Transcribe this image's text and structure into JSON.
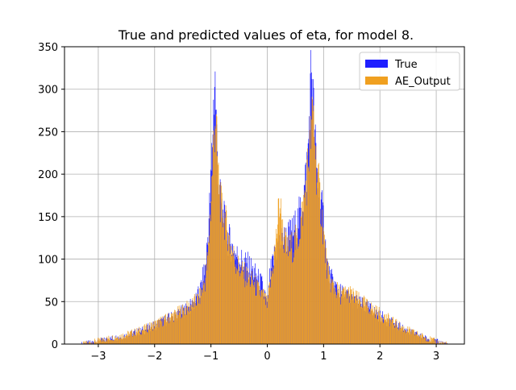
{
  "chart_data": {
    "type": "bar",
    "title": "True and predicted values of eta, for model 8.",
    "xlabel": "",
    "ylabel": "",
    "xlim": [
      -3.6,
      3.5
    ],
    "ylim": [
      0,
      350
    ],
    "xticks": [
      -3,
      -2,
      -1,
      0,
      1,
      2,
      3
    ],
    "yticks": [
      0,
      50,
      100,
      150,
      200,
      250,
      300,
      350
    ],
    "grid": true,
    "legend_position": "top-right",
    "bin_width": 0.01,
    "series": [
      {
        "name": "True",
        "color": "#1f1fff",
        "profile": [
          [
            -3.3,
            0
          ],
          [
            -3.2,
            1
          ],
          [
            -3.0,
            3
          ],
          [
            -2.8,
            6
          ],
          [
            -2.5,
            10
          ],
          [
            -2.2,
            16
          ],
          [
            -2.0,
            22
          ],
          [
            -1.8,
            28
          ],
          [
            -1.6,
            35
          ],
          [
            -1.4,
            42
          ],
          [
            -1.3,
            48
          ],
          [
            -1.2,
            60
          ],
          [
            -1.1,
            90
          ],
          [
            -1.05,
            130
          ],
          [
            -1.0,
            190
          ],
          [
            -0.96,
            270
          ],
          [
            -0.93,
            320
          ],
          [
            -0.9,
            250
          ],
          [
            -0.85,
            175
          ],
          [
            -0.8,
            155
          ],
          [
            -0.7,
            125
          ],
          [
            -0.6,
            110
          ],
          [
            -0.5,
            100
          ],
          [
            -0.4,
            95
          ],
          [
            -0.3,
            90
          ],
          [
            -0.2,
            80
          ],
          [
            -0.1,
            70
          ],
          [
            -0.03,
            55
          ],
          [
            0.0,
            40
          ],
          [
            0.05,
            80
          ],
          [
            0.15,
            110
          ],
          [
            0.25,
            120
          ],
          [
            0.35,
            125
          ],
          [
            0.45,
            130
          ],
          [
            0.55,
            145
          ],
          [
            0.65,
            175
          ],
          [
            0.72,
            220
          ],
          [
            0.76,
            285
          ],
          [
            0.79,
            335
          ],
          [
            0.83,
            260
          ],
          [
            0.88,
            200
          ],
          [
            0.93,
            175
          ],
          [
            1.0,
            145
          ],
          [
            1.05,
            100
          ],
          [
            1.1,
            80
          ],
          [
            1.2,
            68
          ],
          [
            1.3,
            60
          ],
          [
            1.45,
            55
          ],
          [
            1.6,
            48
          ],
          [
            1.8,
            42
          ],
          [
            2.0,
            33
          ],
          [
            2.2,
            25
          ],
          [
            2.4,
            18
          ],
          [
            2.6,
            12
          ],
          [
            2.8,
            7
          ],
          [
            3.0,
            3
          ],
          [
            3.2,
            0
          ]
        ]
      },
      {
        "name": "AE_Output",
        "color": "#f0a020",
        "profile": [
          [
            -3.3,
            0
          ],
          [
            -3.2,
            1
          ],
          [
            -3.0,
            4
          ],
          [
            -2.8,
            7
          ],
          [
            -2.5,
            11
          ],
          [
            -2.2,
            17
          ],
          [
            -2.0,
            23
          ],
          [
            -1.8,
            29
          ],
          [
            -1.6,
            36
          ],
          [
            -1.4,
            43
          ],
          [
            -1.3,
            48
          ],
          [
            -1.2,
            55
          ],
          [
            -1.1,
            75
          ],
          [
            -1.05,
            105
          ],
          [
            -1.0,
            165
          ],
          [
            -0.96,
            230
          ],
          [
            -0.92,
            275
          ],
          [
            -0.88,
            210
          ],
          [
            -0.83,
            165
          ],
          [
            -0.75,
            145
          ],
          [
            -0.65,
            115
          ],
          [
            -0.55,
            95
          ],
          [
            -0.45,
            85
          ],
          [
            -0.35,
            78
          ],
          [
            -0.25,
            72
          ],
          [
            -0.15,
            62
          ],
          [
            -0.05,
            55
          ],
          [
            0.0,
            45
          ],
          [
            0.05,
            70
          ],
          [
            0.12,
            100
          ],
          [
            0.18,
            140
          ],
          [
            0.22,
            170
          ],
          [
            0.28,
            130
          ],
          [
            0.35,
            110
          ],
          [
            0.45,
            115
          ],
          [
            0.55,
            125
          ],
          [
            0.65,
            165
          ],
          [
            0.73,
            215
          ],
          [
            0.78,
            250
          ],
          [
            0.82,
            275
          ],
          [
            0.87,
            210
          ],
          [
            0.93,
            175
          ],
          [
            1.0,
            130
          ],
          [
            1.05,
            95
          ],
          [
            1.1,
            75
          ],
          [
            1.2,
            65
          ],
          [
            1.3,
            58
          ],
          [
            1.45,
            60
          ],
          [
            1.6,
            52
          ],
          [
            1.8,
            44
          ],
          [
            2.0,
            35
          ],
          [
            2.2,
            27
          ],
          [
            2.4,
            19
          ],
          [
            2.6,
            13
          ],
          [
            2.8,
            8
          ],
          [
            3.0,
            3
          ],
          [
            3.2,
            0
          ]
        ]
      }
    ]
  }
}
